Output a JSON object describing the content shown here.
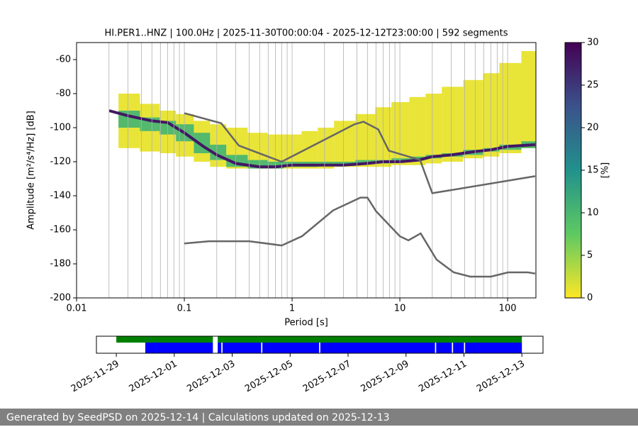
{
  "chart_data": [
    {
      "type": "ppsd",
      "title": "HI.PER1..HNZ | 100.0Hz | 2025-11-30T00:00:04 - 2025-12-12T23:00:00 | 592 segments",
      "xlabel": "Period [s]",
      "ylabel": "Amplitude [m²/s⁴/Hz] [dB]",
      "xscale": "log",
      "xlim": [
        0.01,
        183
      ],
      "ylim": [
        -200,
        -50
      ],
      "xticks": [
        0.01,
        0.1,
        1,
        10,
        100
      ],
      "xminorticks": [
        0.02,
        0.03,
        0.04,
        0.05,
        0.06,
        0.07,
        0.08,
        0.09,
        0.2,
        0.3,
        0.4,
        0.5,
        0.6,
        0.7,
        0.8,
        0.9,
        2,
        3,
        4,
        5,
        6,
        7,
        8,
        9,
        20,
        30,
        40,
        50,
        60,
        70,
        80,
        90
      ],
      "yticks": [
        -60,
        -80,
        -100,
        -120,
        -140,
        -160,
        -180,
        -200
      ],
      "grid": "x",
      "colormap": [
        "#fde725",
        "#5ec962",
        "#21918c",
        "#3b528b",
        "#440154"
      ],
      "clim": [
        0,
        30
      ],
      "cticks": [
        0,
        5,
        10,
        15,
        20,
        25,
        30
      ],
      "clabel": "[%]",
      "density": {
        "x": [
          0.02,
          0.03,
          0.05,
          0.07,
          0.1,
          0.15,
          0.2,
          0.3,
          0.5,
          0.7,
          1,
          1.5,
          2,
          3,
          5,
          7,
          10,
          15,
          20,
          30,
          50,
          70,
          100,
          180
        ],
        "layers": [
          {
            "percent": 1,
            "low": [
              -107,
              -112,
              -114,
              -115,
              -117,
              -120,
              -123,
              -124,
              -124,
              -124,
              -124,
              -124,
              -124,
              -123,
              -123,
              -123,
              -122,
              -122,
              -121,
              -120,
              -118,
              -117,
              -115,
              -112
            ],
            "high": [
              -78,
              -80,
              -86,
              -90,
              -92,
              -96,
              -98,
              -100,
              -103,
              -104,
              -104,
              -102,
              -100,
              -96,
              -92,
              -88,
              -85,
              -82,
              -80,
              -76,
              -72,
              -68,
              -62,
              -55
            ]
          },
          {
            "percent": 10,
            "low": [
              -100,
              -100,
              -102,
              -104,
              -108,
              -115,
              -119,
              -123,
              -124,
              -124,
              -123,
              -123,
              -122,
              -122,
              -121,
              -121,
              -120,
              -119,
              -118,
              -117,
              -116,
              -114,
              -113,
              -112
            ],
            "high": [
              -88,
              -90,
              -94,
              -96,
              -98,
              -103,
              -110,
              -116,
              -119,
              -120,
              -120,
              -120,
              -120,
              -120,
              -119,
              -119,
              -118,
              -117,
              -116,
              -115,
              -113,
              -112,
              -110,
              -108
            ]
          }
        ],
        "mode": [
          -90,
          -93,
          -96,
          -97,
          -103,
          -111,
          -116,
          -121,
          -123,
          -123,
          -122,
          -122,
          -122,
          -122,
          -121,
          -120,
          -120,
          -119,
          -117,
          -116,
          -114,
          -113,
          -111,
          -110
        ],
        "mode_percent": 28
      },
      "lines": [
        {
          "x": [
            0.1,
            0.22,
            0.32,
            0.8,
            3.8,
            4.6,
            6.3,
            7.9,
            15.4,
            20,
            180
          ],
          "values": [
            -91.5,
            -97.4,
            -110.5,
            -120,
            -98,
            -96.5,
            -101,
            -113.5,
            -119,
            -138.5,
            -128.5
          ],
          "color": "#666666"
        },
        {
          "x": [
            0.1,
            0.17,
            0.4,
            0.8,
            1.24,
            2.4,
            4.3,
            5,
            6,
            10,
            12,
            15.6,
            21.9,
            31.6,
            45,
            70,
            101,
            154,
            180
          ],
          "values": [
            -168,
            -166.7,
            -166.7,
            -169.2,
            -163.7,
            -148.6,
            -141.1,
            -141.1,
            -149,
            -163.8,
            -166.2,
            -162.1,
            -177.5,
            -185,
            -187.5,
            -187.5,
            -185,
            -185,
            -185.7
          ],
          "color": "#666666"
        }
      ]
    },
    {
      "type": "timeline",
      "xlim": [
        "2025-11-28T07:30",
        "2025-12-13T17:30"
      ],
      "xticks": [
        "2025-11-29",
        "2025-12-01",
        "2025-12-03",
        "2025-12-05",
        "2025-12-07",
        "2025-12-09",
        "2025-12-11",
        "2025-12-13"
      ],
      "rows": [
        {
          "color": "#008000",
          "segments": [
            [
              "2025-11-29T00:00",
              "2025-12-02T08:00"
            ],
            [
              "2025-12-02T12:00",
              "2025-12-13T00:00"
            ]
          ]
        },
        {
          "color": "#0000ff",
          "segments": [
            [
              "2025-11-30T00:00",
              "2025-12-02T08:00"
            ],
            [
              "2025-12-02T12:00",
              "2025-12-02T15:00"
            ],
            [
              "2025-12-02T16:00",
              "2025-12-04T00:00"
            ],
            [
              "2025-12-04T01:00",
              "2025-12-06T00:00"
            ],
            [
              "2025-12-06T01:00",
              "2025-12-10T00:00"
            ],
            [
              "2025-12-10T01:00",
              "2025-12-10T14:00"
            ],
            [
              "2025-12-10T15:00",
              "2025-12-11T00:00"
            ],
            [
              "2025-12-11T01:00",
              "2025-12-13T00:00"
            ]
          ]
        }
      ]
    }
  ],
  "footer": "Generated by SeedPSD on 2025-12-14 | Calculations updated on 2025-12-13"
}
